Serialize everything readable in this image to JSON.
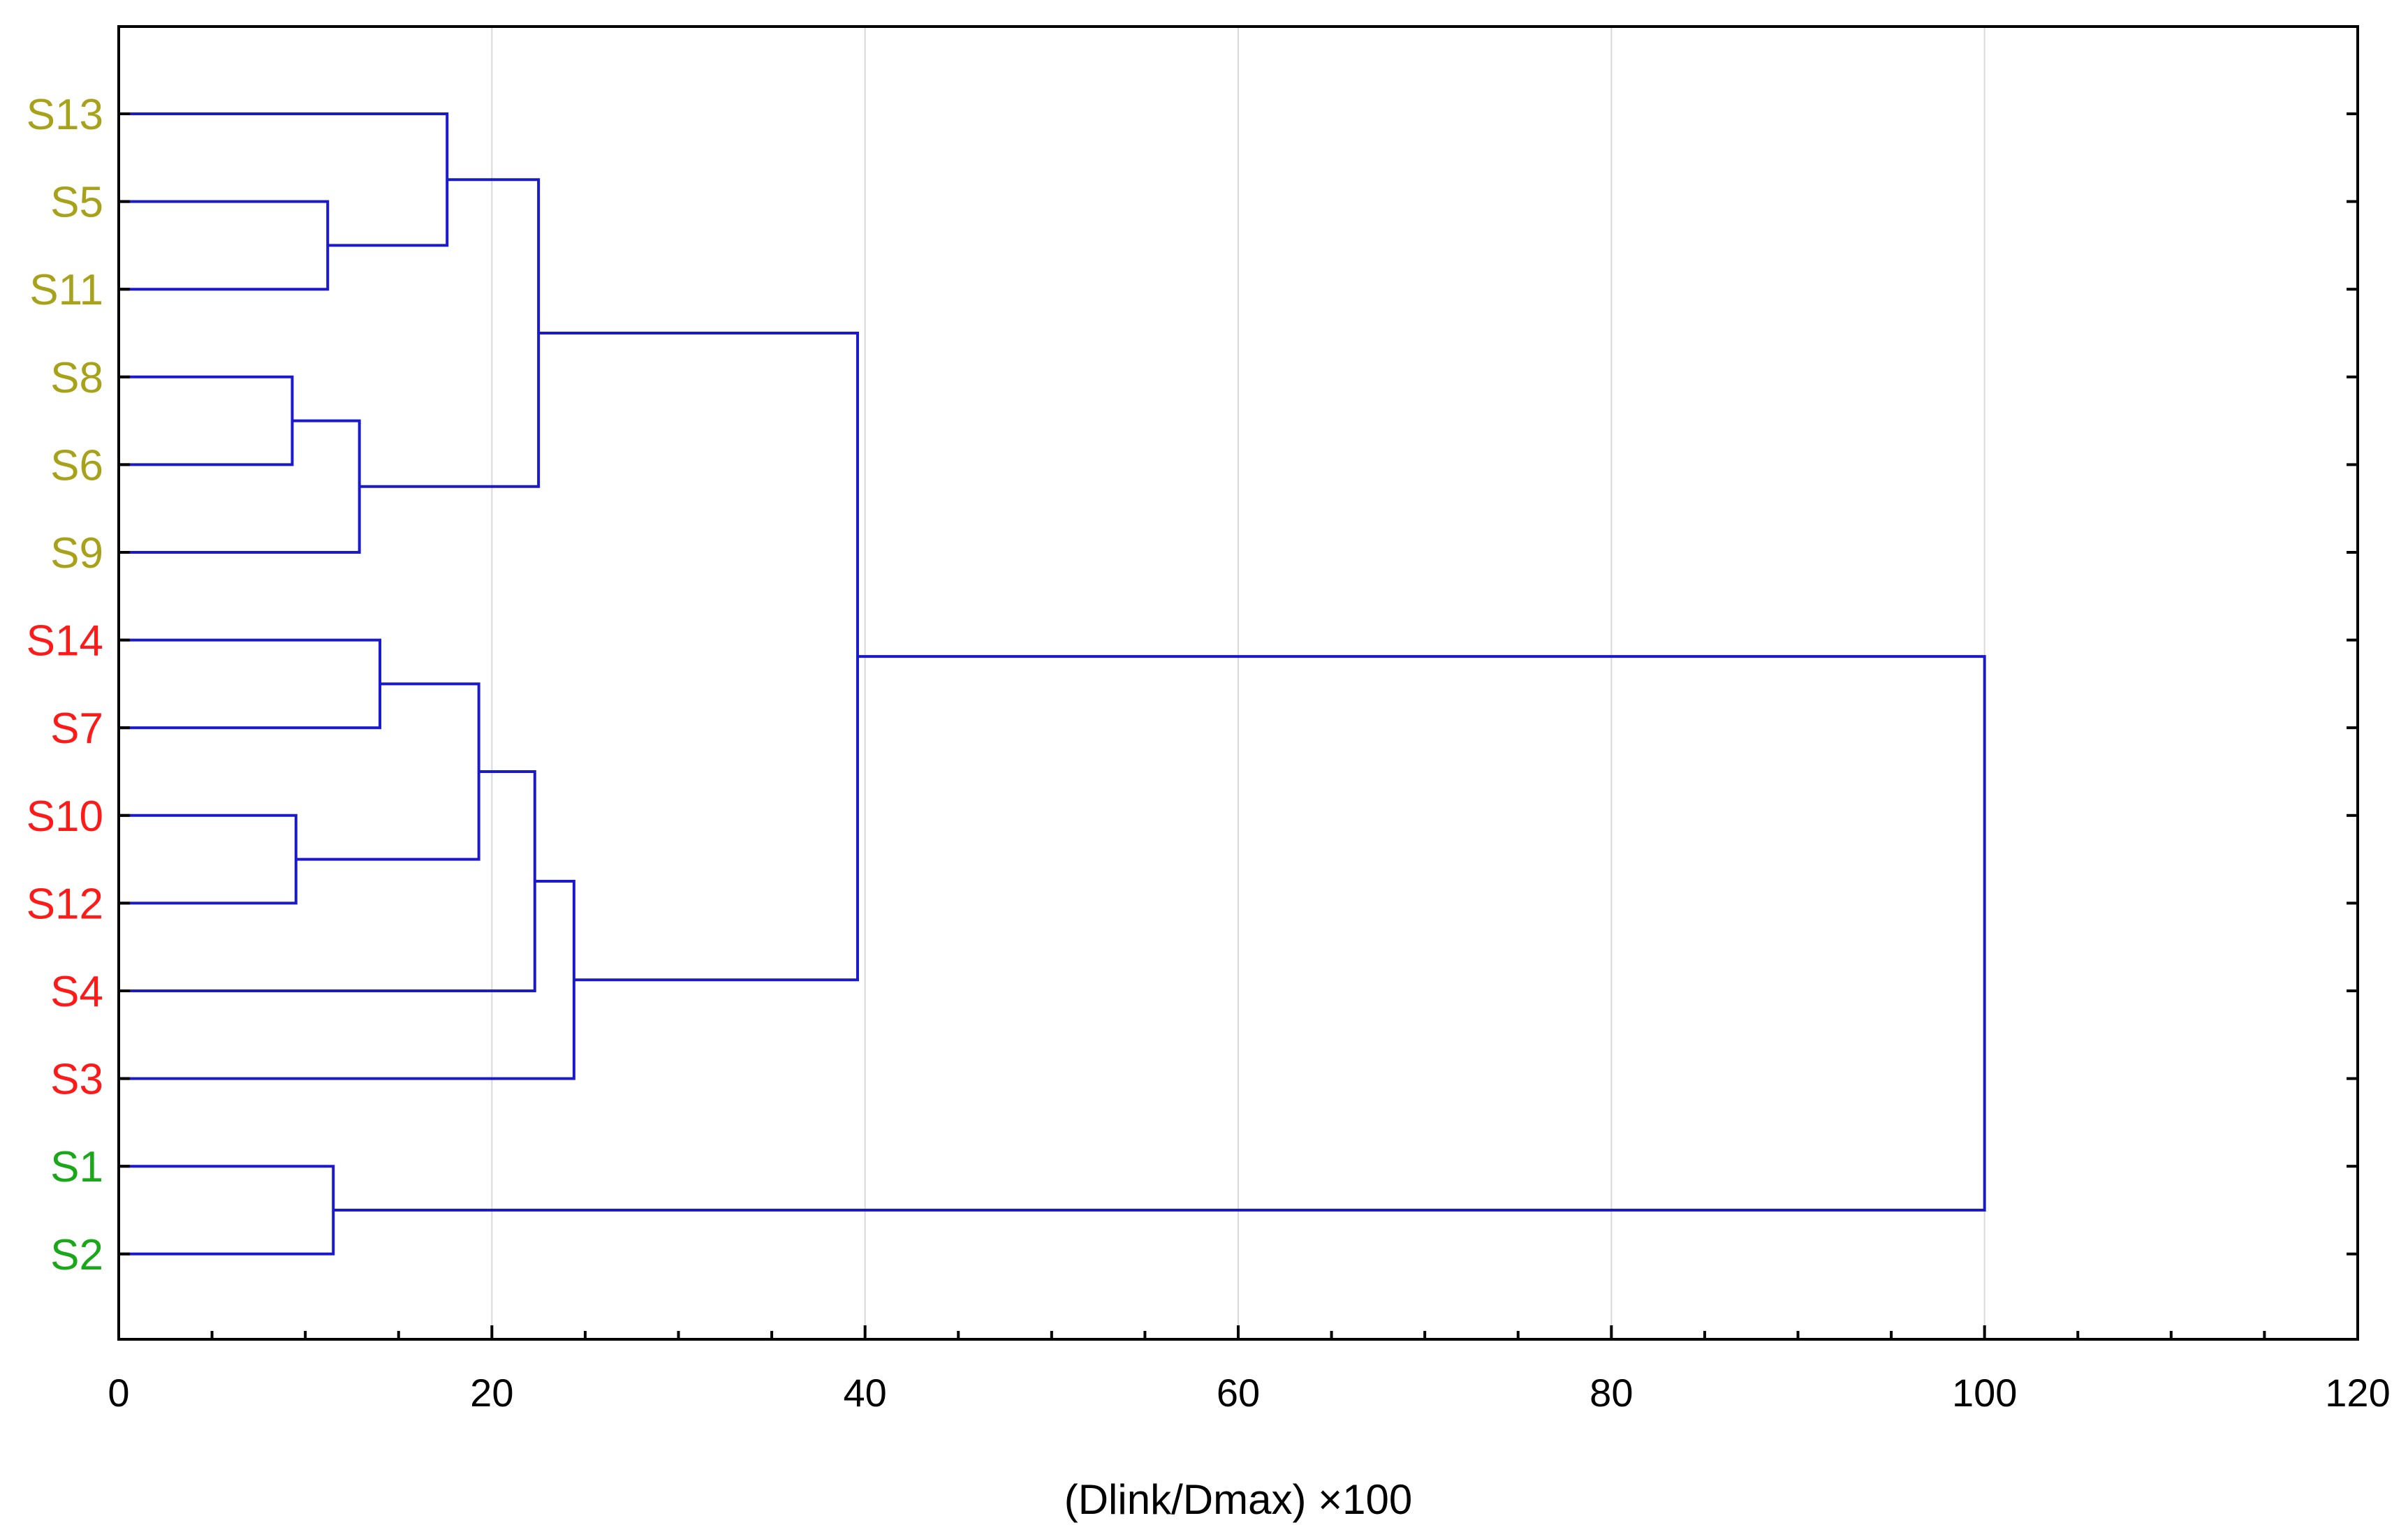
{
  "chart_data": {
    "type": "dendrogram",
    "orientation": "horizontal",
    "xlabel": "(Dlink/Dmax) ×100",
    "xlim": [
      0,
      120
    ],
    "x_ticks": [
      "0",
      "20",
      "40",
      "60",
      "80",
      "100",
      "120"
    ],
    "x_tick_values": [
      0,
      20,
      40,
      60,
      80,
      100,
      120
    ],
    "grid": "vertical",
    "leaves": [
      {
        "label": "S13",
        "color": "#a8a21a"
      },
      {
        "label": "S5",
        "color": "#a8a21a"
      },
      {
        "label": "S11",
        "color": "#a8a21a"
      },
      {
        "label": "S8",
        "color": "#a8a21a"
      },
      {
        "label": "S6",
        "color": "#a8a21a"
      },
      {
        "label": "S9",
        "color": "#a8a21a"
      },
      {
        "label": "S14",
        "color": "#ff1a1a"
      },
      {
        "label": "S7",
        "color": "#ff1a1a"
      },
      {
        "label": "S10",
        "color": "#ff1a1a"
      },
      {
        "label": "S12",
        "color": "#ff1a1a"
      },
      {
        "label": "S4",
        "color": "#ff1a1a"
      },
      {
        "label": "S3",
        "color": "#ff1a1a"
      },
      {
        "label": "S1",
        "color": "#1aa81a"
      },
      {
        "label": "S2",
        "color": "#1aa81a"
      }
    ],
    "merges": [
      {
        "a": 1,
        "b": 2,
        "height": 11.2
      },
      {
        "a": 0,
        "b": "m0",
        "height": 17.6
      },
      {
        "a": 3,
        "b": 4,
        "height": 9.3
      },
      {
        "a": "m2",
        "b": 5,
        "height": 12.9
      },
      {
        "a": "m1",
        "b": "m3",
        "height": 22.5
      },
      {
        "a": 6,
        "b": 7,
        "height": 14.0
      },
      {
        "a": 8,
        "b": 9,
        "height": 9.5
      },
      {
        "a": "m5",
        "b": "m6",
        "height": 19.3
      },
      {
        "a": "m7",
        "b": 10,
        "height": 22.3
      },
      {
        "a": "m8",
        "b": 11,
        "height": 24.4
      },
      {
        "a": "m4",
        "b": "m9",
        "height": 39.6
      },
      {
        "a": 12,
        "b": 13,
        "height": 11.5
      },
      {
        "a": "m10",
        "b": "m11",
        "height": 100
      }
    ],
    "link_color": "#1a1acc",
    "grid_color": "#d9d9d9"
  }
}
